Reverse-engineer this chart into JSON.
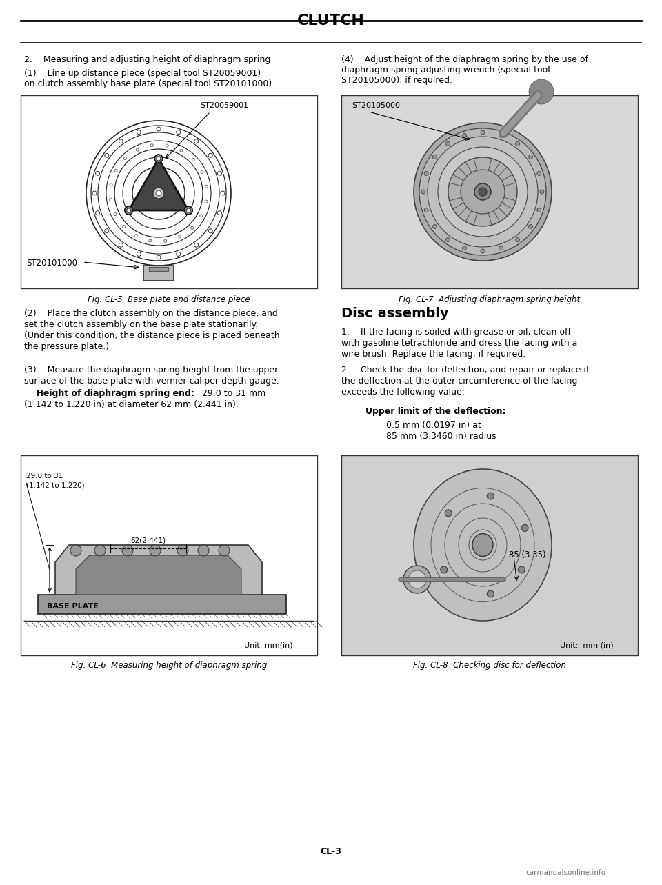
{
  "title": "CLUTCH",
  "bg_color": "#ffffff",
  "text_color": "#000000",
  "page_number": "CL-3",
  "watermark": "carmanualsonline.info",
  "section_title_left": "2.    Measuring and adjusting height of diaphragm spring",
  "para1_line1": "(1)    Line up distance piece (special tool ST20059001)",
  "para1_line2": "on clutch assembly base plate (special tool ST20101000).",
  "fig1_caption": "Fig. CL-5  Base plate and distance piece",
  "fig1_label1": "ST20059001",
  "fig1_label2": "ST20101000",
  "para_right1_line1": "(4)    Adjust height of the diaphragm spring by the use of",
  "para_right1_line2": "diaphragm spring adjusting wrench (special tool",
  "para_right1_line3": "ST20105000), if required.",
  "fig2_caption": "Fig. CL-7  Adjusting diaphragm spring height",
  "fig2_label1": "ST20105000",
  "disc_assembly_title": "Disc assembly",
  "disc_para1_l1": "1.    If the facing is soiled with grease or oil, clean off",
  "disc_para1_l2": "with gasoline tetrachloride and dress the facing with a",
  "disc_para1_l3": "wire brush. Replace the facing, if required.",
  "disc_para2_l1": "2.    Check the disc for deflection, and repair or replace if",
  "disc_para2_l2": "the deflection at the outer circumference of the facing",
  "disc_para2_l3": "exceeds the following value:",
  "upper_limit_title": "Upper limit of the deflection:",
  "upper_limit_val1": "0.5 mm (0.0197 in) at",
  "upper_limit_val2": "85 mm (3.3460 in) radius",
  "para2_l1": "(2)    Place the clutch assembly on the distance piece, and",
  "para2_l2": "set the clutch assembly on the base plate stationarily.",
  "para2_l3": "(Under this condition, the distance piece is placed beneath",
  "para2_l4": "the pressure plate.)",
  "para3_l1": "(3)    Measure the diaphragm spring height from the upper",
  "para3_l2": "surface of the base plate with vernier caliper depth gauge.",
  "para3b_bold": "    Height of diaphragm spring end:",
  "para3b_normal": "  29.0 to 31 mm",
  "para3b_l2": "(1.142 to 1.220 in) at diameter 62 mm (2.441 in).",
  "fig3_caption": "Fig. CL-6  Measuring height of diaphragm spring",
  "fig3_unit": "Unit: mm(in)",
  "fig3_label1_l1": "29.0 to 31",
  "fig3_label1_l2": "(1.142 to 1.220)",
  "fig3_label2": "62(2.441)",
  "fig3_label3": "BASE PLATE",
  "fig4_caption": "Fig. CL-8  Checking disc for deflection",
  "fig4_label1": "85 (3.35)",
  "fig4_unit": "Unit:  mm (in)"
}
